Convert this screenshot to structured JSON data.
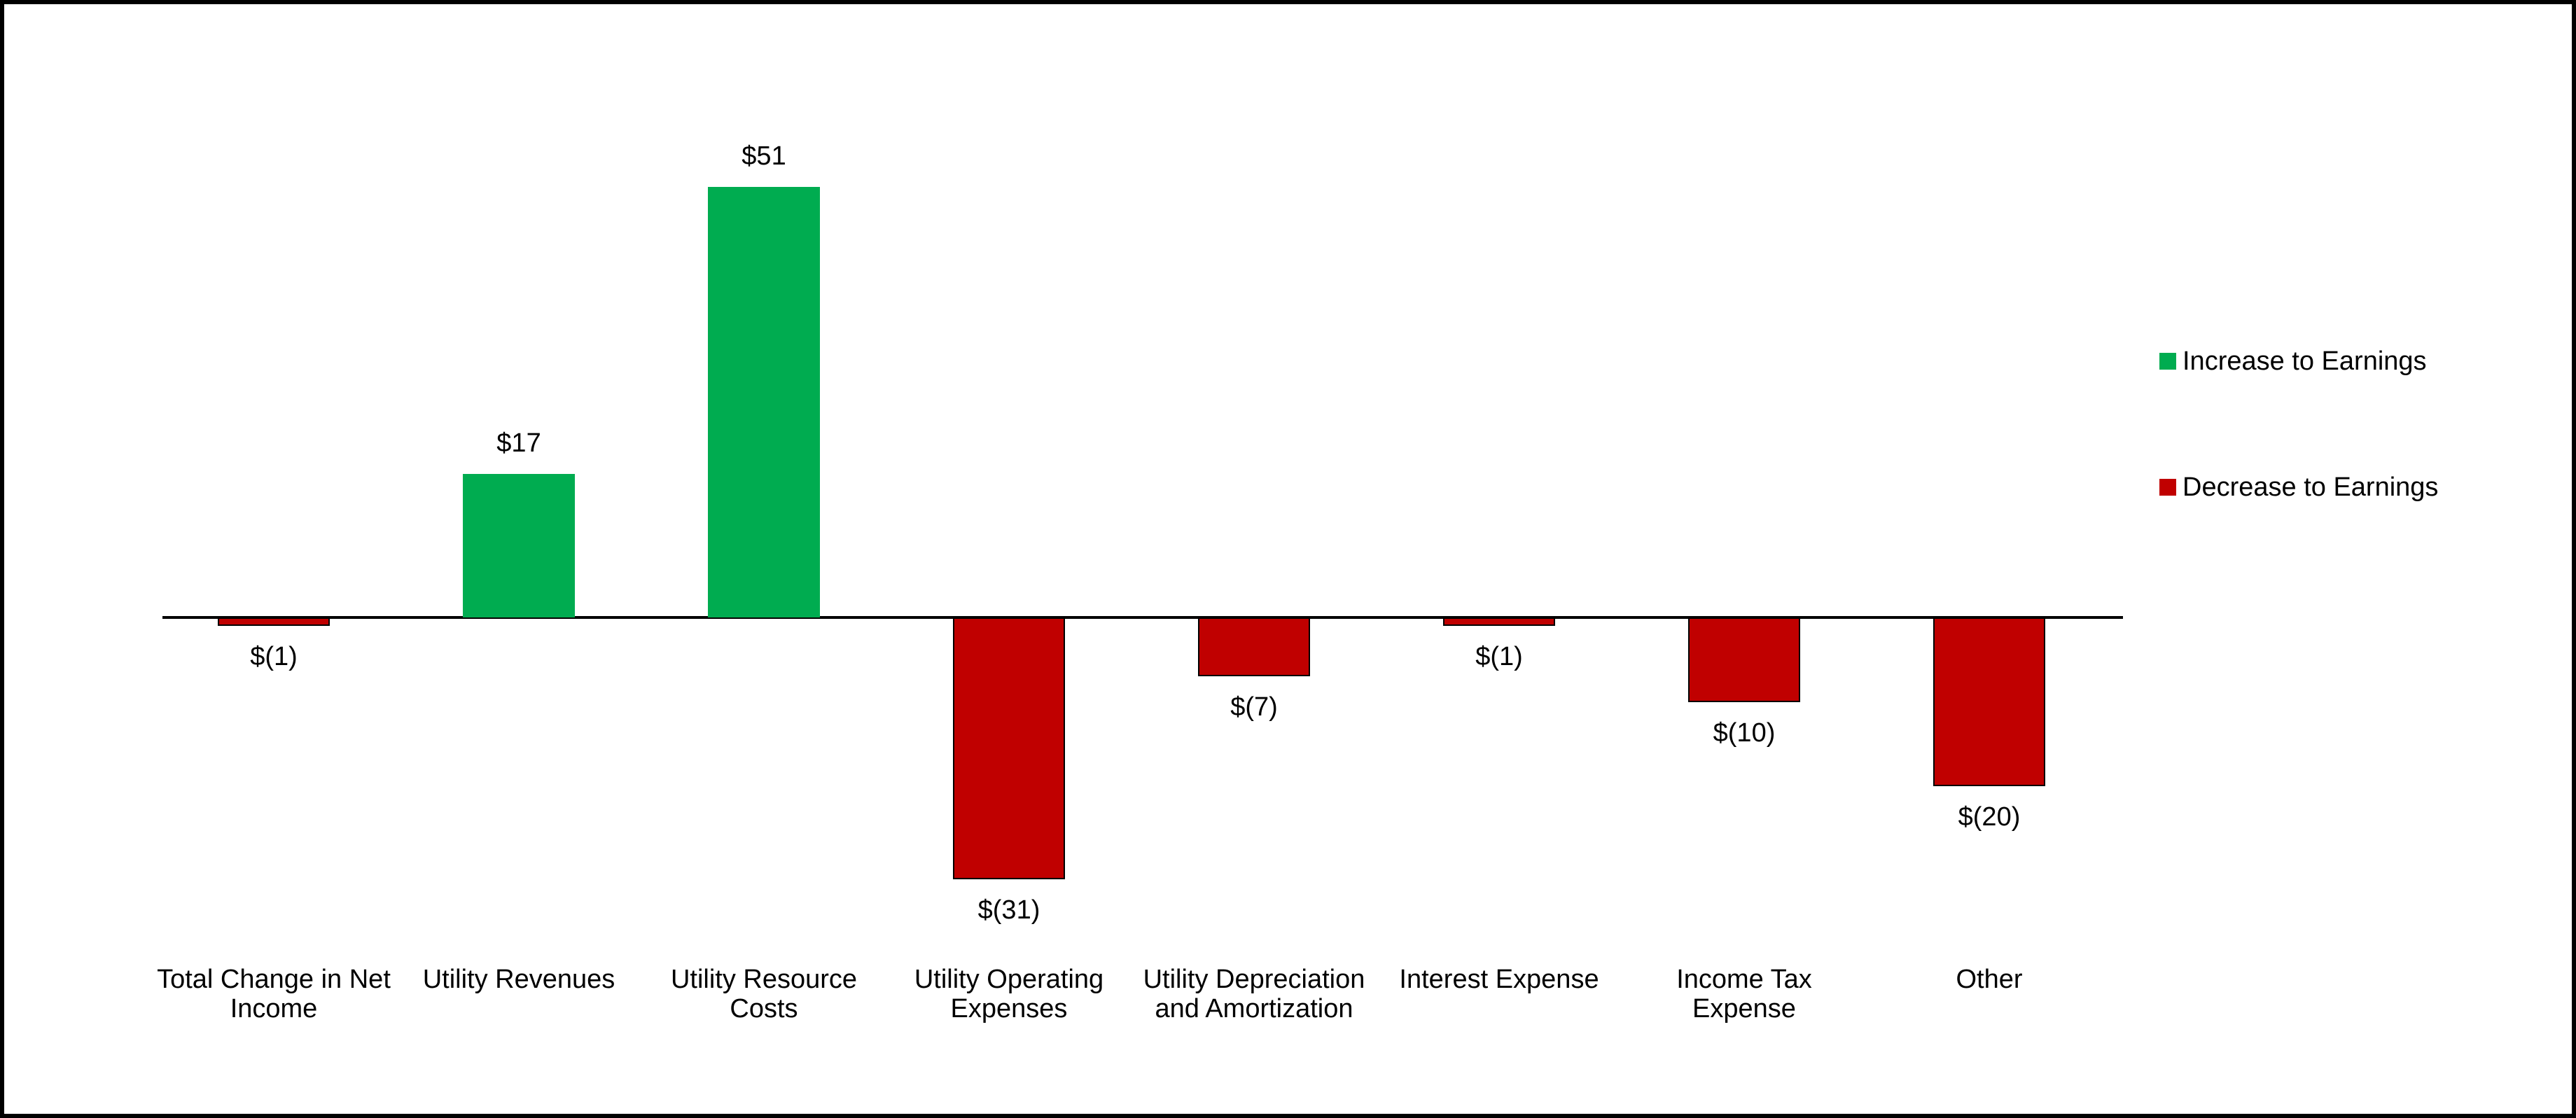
{
  "chart_data": {
    "type": "bar",
    "title": "",
    "xlabel": "",
    "ylabel": "",
    "grid": false,
    "baseline": 0,
    "ylim": [
      -35,
      55
    ],
    "categories": [
      "Total Change in Net\nIncome",
      "Utility Revenues",
      "Utility Resource\nCosts",
      "Utility Operating\nExpenses",
      "Utility Depreciation\nand Amortization",
      "Interest Expense",
      "Income Tax Expense",
      "Other"
    ],
    "values": [
      -1,
      17,
      51,
      -31,
      -7,
      -1,
      -10,
      -20
    ],
    "value_labels": [
      "$(1)",
      "$17",
      "$51",
      "$(31)",
      "$(7)",
      "$(1)",
      "$(10)",
      "$(20)"
    ],
    "colors": {
      "increase": "#00AC50",
      "decrease": "#C00000",
      "bar_border": "#000000",
      "axis": "#000000",
      "text": "#000000"
    },
    "legend_position": "right",
    "legend": [
      {
        "label": "Increase to Earnings",
        "color": "#00AC50"
      },
      {
        "label": "Decrease to Earnings",
        "color": "#C00000"
      }
    ]
  }
}
